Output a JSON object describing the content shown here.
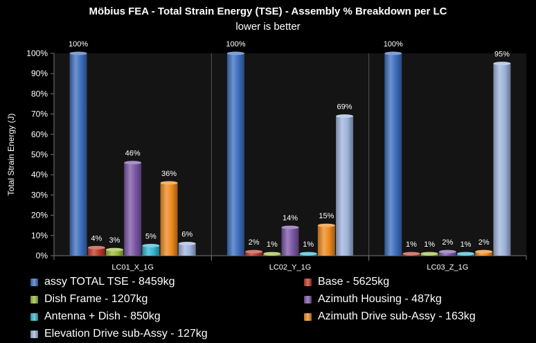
{
  "title": "Möbius FEA - Total Strain Energy (TSE) - Assembly % Breakdown per LC",
  "subtitle": "lower is better",
  "chart_data": {
    "type": "bar",
    "title": "Möbius FEA - Total Strain Energy (TSE) - Assembly % Breakdown per LC",
    "subtitle": "lower is better",
    "xlabel": "",
    "ylabel": "Total Strain Energy (J)",
    "ylim": [
      0,
      100
    ],
    "yticks": [
      "0%",
      "10%",
      "20%",
      "30%",
      "40%",
      "50%",
      "60%",
      "70%",
      "80%",
      "90%",
      "100%"
    ],
    "grid": false,
    "legend_position": "bottom",
    "categories": [
      "LC01_X_1G",
      "LC02_Y_1G",
      "LC03_Z_1G"
    ],
    "series": [
      {
        "name": "assy TOTAL TSE - 8459kg",
        "color": "#3d6fbf",
        "values": [
          100,
          100,
          100
        ],
        "labels": [
          "100%",
          "100%",
          "100%"
        ]
      },
      {
        "name": "Base - 5625kg",
        "color": "#c0392b",
        "values": [
          4,
          2,
          1
        ],
        "labels": [
          "4%",
          "2%",
          "1%"
        ]
      },
      {
        "name": "Dish Frame - 1207kg",
        "color": "#9bbb3b",
        "values": [
          3,
          1,
          1
        ],
        "labels": [
          "3%",
          "1%",
          "1%"
        ]
      },
      {
        "name": "Azimuth Housing - 487kg",
        "color": "#7b57a6",
        "values": [
          46,
          14,
          2
        ],
        "labels": [
          "46%",
          "14%",
          "2%"
        ]
      },
      {
        "name": "Antenna + Dish - 850kg",
        "color": "#34b6d1",
        "values": [
          5,
          1,
          1
        ],
        "labels": [
          "5%",
          "1%",
          "1%"
        ]
      },
      {
        "name": "Azimuth Drive sub-Assy - 163kg",
        "color": "#ee8a1e",
        "values": [
          36,
          15,
          2
        ],
        "labels": [
          "36%",
          "15%",
          "2%"
        ]
      },
      {
        "name": "Elevation Drive sub-Assy - 127kg",
        "color": "#9fb4dc",
        "values": [
          6,
          69,
          95
        ],
        "labels": [
          "6%",
          "69%",
          "95%"
        ]
      }
    ]
  }
}
